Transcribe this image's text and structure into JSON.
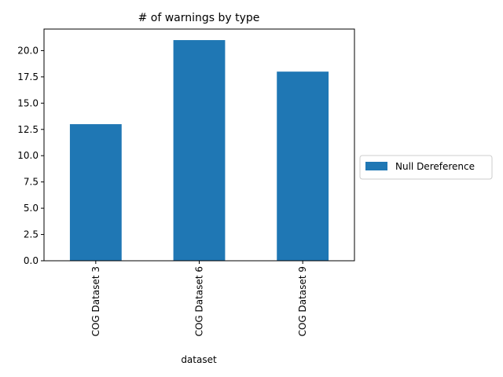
{
  "chart_data": {
    "type": "bar",
    "title": "# of warnings by type",
    "xlabel": "dataset",
    "ylabel": "",
    "categories": [
      "COG Dataset 3",
      "COG Dataset 6",
      "COG Dataset 9"
    ],
    "series": [
      {
        "name": "Null Dereference",
        "values": [
          13,
          21,
          18
        ],
        "color": "#1f77b4"
      }
    ],
    "ylim": [
      0,
      22.05
    ],
    "yticks": [
      0.0,
      2.5,
      5.0,
      7.5,
      10.0,
      12.5,
      15.0,
      17.5,
      20.0
    ],
    "ytick_labels": [
      "0.0",
      "2.5",
      "5.0",
      "7.5",
      "10.0",
      "12.5",
      "15.0",
      "17.5",
      "20.0"
    ],
    "grid": false,
    "legend_position": "center-right outside"
  }
}
